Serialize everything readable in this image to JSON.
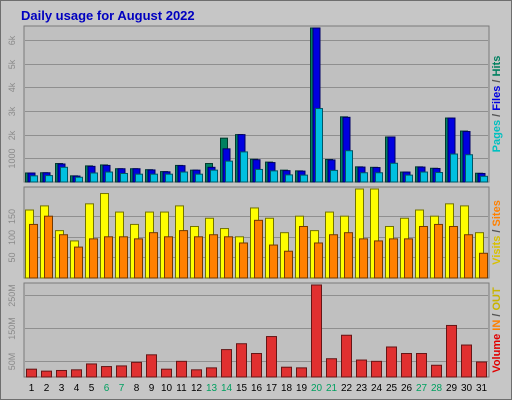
{
  "chart_data": [
    {
      "title": "Daily usage for August 2022",
      "type": "bar",
      "panel": "pages-files-hits",
      "categories": [
        "1",
        "2",
        "3",
        "4",
        "5",
        "6",
        "7",
        "8",
        "9",
        "10",
        "11",
        "12",
        "13",
        "14",
        "15",
        "16",
        "17",
        "18",
        "19",
        "20",
        "21",
        "22",
        "23",
        "24",
        "25",
        "26",
        "27",
        "28",
        "29",
        "30",
        "31"
      ],
      "weekend_days": [
        "6",
        "7",
        "13",
        "14",
        "20",
        "21",
        "27",
        "28"
      ],
      "ylim": [
        0,
        6500
      ],
      "y_ticks": [
        {
          "v": 1000,
          "label": "1000"
        },
        {
          "v": 2000,
          "label": "2k"
        },
        {
          "v": 3000,
          "label": "3k"
        },
        {
          "v": 4000,
          "label": "4k"
        },
        {
          "v": 5000,
          "label": "5k"
        },
        {
          "v": 6000,
          "label": "6k"
        }
      ],
      "axis_label": [
        {
          "text": "Pages",
          "color": "#00c0c0"
        },
        {
          "text": " / ",
          "color": "#555555"
        },
        {
          "text": "Files",
          "color": "#0000e0"
        },
        {
          "text": " / ",
          "color": "#555555"
        },
        {
          "text": "Hits",
          "color": "#008060"
        }
      ],
      "series": [
        {
          "name": "Hits",
          "color": "#008060",
          "values": [
            380,
            390,
            780,
            260,
            680,
            720,
            560,
            560,
            520,
            440,
            700,
            500,
            780,
            1850,
            2000,
            960,
            840,
            500,
            470,
            6500,
            950,
            2750,
            640,
            620,
            1900,
            420,
            640,
            580,
            2700,
            2150,
            370
          ]
        },
        {
          "name": "Files",
          "color": "#0000e0",
          "values": [
            380,
            390,
            760,
            250,
            660,
            700,
            560,
            560,
            510,
            430,
            690,
            500,
            620,
            1400,
            2000,
            940,
            820,
            480,
            460,
            6500,
            930,
            2730,
            630,
            610,
            1900,
            420,
            630,
            570,
            2700,
            2130,
            360
          ]
        },
        {
          "name": "Pages",
          "color": "#00c0e0",
          "values": [
            260,
            270,
            620,
            200,
            380,
            420,
            360,
            330,
            330,
            330,
            420,
            330,
            500,
            880,
            1270,
            530,
            470,
            300,
            290,
            3100,
            490,
            1320,
            390,
            390,
            790,
            290,
            420,
            400,
            1180,
            1150,
            240
          ]
        }
      ]
    },
    {
      "type": "bar",
      "panel": "visits-sites",
      "categories": [
        "1",
        "2",
        "3",
        "4",
        "5",
        "6",
        "7",
        "8",
        "9",
        "10",
        "11",
        "12",
        "13",
        "14",
        "15",
        "16",
        "17",
        "18",
        "19",
        "20",
        "21",
        "22",
        "23",
        "24",
        "25",
        "26",
        "27",
        "28",
        "29",
        "30",
        "31"
      ],
      "ylim": [
        0,
        216
      ],
      "y_ticks": [
        {
          "v": 50,
          "label": "50"
        },
        {
          "v": 100,
          "label": "100"
        },
        {
          "v": 150,
          "label": "150"
        }
      ],
      "axis_label": [
        {
          "text": "Visits",
          "color": "#d8c000"
        },
        {
          "text": " / ",
          "color": "#555555"
        },
        {
          "text": "Sites",
          "color": "#ff8000"
        }
      ],
      "series": [
        {
          "name": "Visits",
          "color": "#ffff00",
          "values": [
            165,
            175,
            115,
            90,
            180,
            205,
            160,
            130,
            160,
            160,
            175,
            125,
            145,
            120,
            100,
            170,
            145,
            110,
            150,
            115,
            160,
            150,
            216,
            216,
            125,
            145,
            165,
            150,
            180,
            175,
            110
          ]
        },
        {
          "name": "Sites",
          "color": "#ff8000",
          "values": [
            130,
            150,
            105,
            75,
            95,
            100,
            100,
            95,
            110,
            100,
            115,
            100,
            105,
            100,
            85,
            140,
            80,
            65,
            125,
            85,
            105,
            110,
            95,
            90,
            95,
            95,
            125,
            130,
            125,
            105,
            60
          ]
        }
      ]
    },
    {
      "type": "bar",
      "panel": "volume",
      "categories": [
        "1",
        "2",
        "3",
        "4",
        "5",
        "6",
        "7",
        "8",
        "9",
        "10",
        "11",
        "12",
        "13",
        "14",
        "15",
        "16",
        "17",
        "18",
        "19",
        "20",
        "21",
        "22",
        "23",
        "24",
        "25",
        "26",
        "27",
        "28",
        "29",
        "30",
        "31"
      ],
      "ylim": [
        0,
        282
      ],
      "y_ticks": [
        {
          "v": 50,
          "label": "50M"
        },
        {
          "v": 150,
          "label": "150M"
        },
        {
          "v": 250,
          "label": "250M"
        }
      ],
      "axis_label": [
        {
          "text": "Volume",
          "color": "#e00000"
        },
        {
          "text": "  ",
          "color": "#555555"
        },
        {
          "text": "IN",
          "color": "#ff8000"
        },
        {
          "text": " / ",
          "color": "#555555"
        },
        {
          "text": "OUT",
          "color": "#c8b400"
        }
      ],
      "series": [
        {
          "name": "Volume",
          "color": "#e03030",
          "values": [
            24,
            18,
            20,
            22,
            40,
            32,
            34,
            45,
            68,
            24,
            48,
            22,
            28,
            84,
            102,
            72,
            124,
            30,
            28,
            282,
            56,
            128,
            52,
            48,
            92,
            72,
            72,
            36,
            158,
            98,
            46
          ]
        }
      ]
    }
  ]
}
